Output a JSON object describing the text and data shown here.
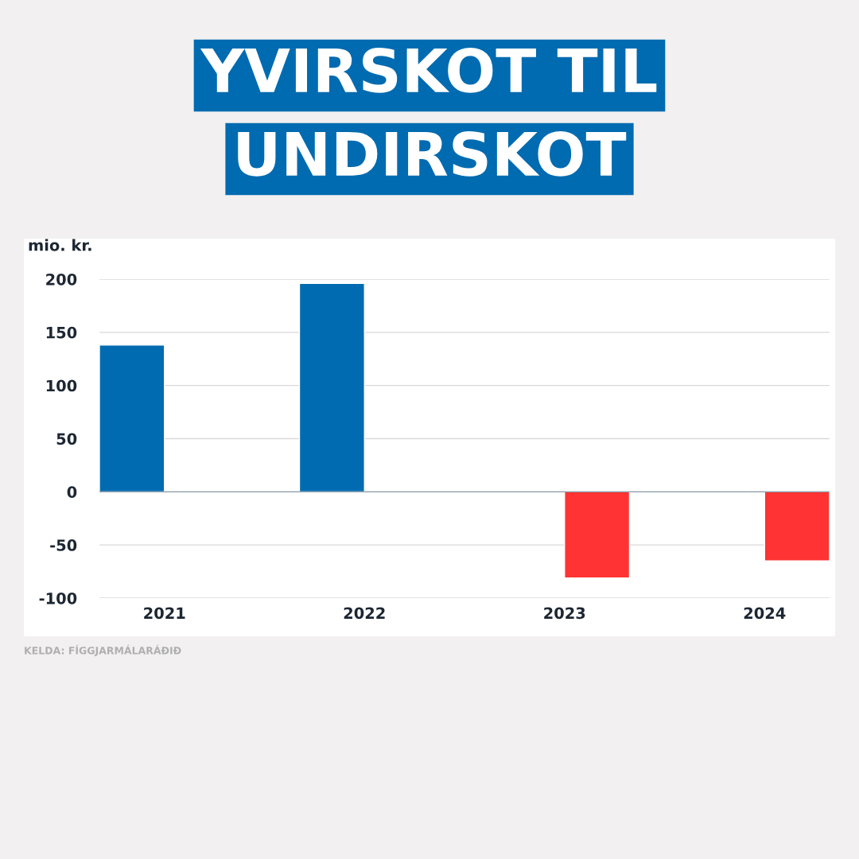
{
  "chart_data": {
    "type": "bar",
    "title": "YVIRSKOT TIL\nUNDIRSKOT",
    "ylabel": "mio. kr.",
    "categories": [
      "2021",
      "2022",
      "2023",
      "2024"
    ],
    "series": [
      {
        "color": "#006bb0",
        "values": [
          138,
          196,
          null,
          null
        ]
      },
      {
        "color": "#ff3333",
        "values": [
          null,
          null,
          -81,
          -65
        ]
      }
    ],
    "ylim": [
      -100,
      200
    ],
    "yticks": [
      -100,
      -50,
      0,
      50,
      100,
      150,
      200
    ],
    "grid": "y",
    "legend": false,
    "annotations": [
      "KELDA: FÍGGJARMÁLARÁÐIÐ"
    ]
  }
}
